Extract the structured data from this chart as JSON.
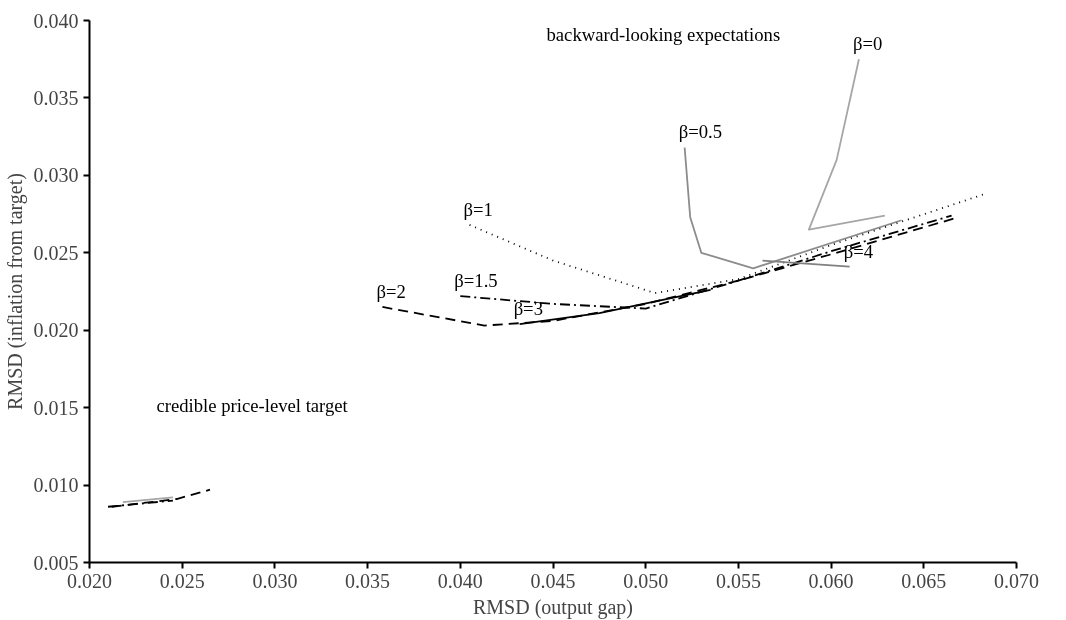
{
  "chart_data": {
    "type": "line",
    "xlabel": "RMSD (output gap)",
    "ylabel": "RMSD (inflation from target)",
    "xlim": [
      0.02,
      0.07
    ],
    "ylim": [
      0.005,
      0.04
    ],
    "xticks": [
      {
        "value": 0.02,
        "label": "0.020"
      },
      {
        "value": 0.025,
        "label": "0.025"
      },
      {
        "value": 0.03,
        "label": "0.030"
      },
      {
        "value": 0.035,
        "label": "0.035"
      },
      {
        "value": 0.04,
        "label": "0.040"
      },
      {
        "value": 0.045,
        "label": "0.045"
      },
      {
        "value": 0.05,
        "label": "0.050"
      },
      {
        "value": 0.055,
        "label": "0.055"
      },
      {
        "value": 0.06,
        "label": "0.060"
      },
      {
        "value": 0.065,
        "label": "0.065"
      },
      {
        "value": 0.07,
        "label": "0.070"
      }
    ],
    "yticks": [
      {
        "value": 0.005,
        "label": "0.005"
      },
      {
        "value": 0.01,
        "label": "0.010"
      },
      {
        "value": 0.015,
        "label": "0.015"
      },
      {
        "value": 0.02,
        "label": "0.020"
      },
      {
        "value": 0.025,
        "label": "0.025"
      },
      {
        "value": 0.03,
        "label": "0.030"
      },
      {
        "value": 0.035,
        "label": "0.035"
      },
      {
        "value": 0.04,
        "label": "0.040"
      }
    ],
    "grid": false,
    "marker": "none",
    "series": [
      {
        "color": "#a6a6a6",
        "line_style": "solid",
        "x": [
          0.0615,
          0.0603,
          0.0588,
          0.0629
        ],
        "values": [
          0.0375,
          0.031,
          0.0265,
          0.0274
        ]
      },
      {
        "color": "#8c8c8c",
        "line_style": "solid",
        "x": [
          0.0521,
          0.0524,
          0.053,
          0.0558,
          0.0638
        ],
        "values": [
          0.0318,
          0.0273,
          0.025,
          0.024,
          0.0271
        ]
      },
      {
        "color": "#000000",
        "line_style": "dotted",
        "x": [
          0.0405,
          0.045,
          0.0505,
          0.055,
          0.06,
          0.0683
        ],
        "values": [
          0.0268,
          0.0245,
          0.0224,
          0.0233,
          0.0255,
          0.0288
        ]
      },
      {
        "color": "#000000",
        "line_style": "dashdot",
        "x": [
          0.04,
          0.045,
          0.05,
          0.055,
          0.06,
          0.0665
        ],
        "values": [
          0.0222,
          0.0217,
          0.0214,
          0.0232,
          0.0251,
          0.0274
        ]
      },
      {
        "color": "#000000",
        "line_style": "dashed",
        "x": [
          0.0358,
          0.0413,
          0.045,
          0.05,
          0.055,
          0.06,
          0.0666
        ],
        "values": [
          0.0215,
          0.0203,
          0.0206,
          0.0217,
          0.0232,
          0.0249,
          0.0272
        ]
      },
      {
        "color": "#000000",
        "line_style": "solid",
        "x": [
          0.0432,
          0.0475,
          0.0535
        ],
        "values": [
          0.0204,
          0.0211,
          0.0226
        ]
      },
      {
        "color": "#808080",
        "line_style": "solid",
        "x": [
          0.0563,
          0.061
        ],
        "values": [
          0.0245,
          0.0241
        ]
      },
      {
        "color": "#000000",
        "line_style": "dashed",
        "x": [
          0.0212,
          0.0247,
          0.0265
        ],
        "values": [
          0.0086,
          0.0091,
          0.0097
        ]
      },
      {
        "color": "#a6a6a6",
        "line_style": "solid",
        "x": [
          0.0218,
          0.0245
        ],
        "values": [
          0.0089,
          0.0092
        ]
      },
      {
        "color": "#000000",
        "line_style": "dashdot",
        "x": [
          0.021,
          0.0245
        ],
        "values": [
          0.0086,
          0.009
        ]
      }
    ],
    "annotations": [
      {
        "text": "β=0",
        "x": 0.0615,
        "y": 0.0375
      },
      {
        "text": "β=0.5",
        "x": 0.0521,
        "y": 0.0318
      },
      {
        "text": "β=1",
        "x": 0.0405,
        "y": 0.0268
      },
      {
        "text": "β=1.5",
        "x": 0.04,
        "y": 0.0222
      },
      {
        "text": "β=2",
        "x": 0.0358,
        "y": 0.0215
      },
      {
        "text": "β=3",
        "x": 0.0432,
        "y": 0.0204
      },
      {
        "text": "β=4",
        "x": 0.061,
        "y": 0.0241
      },
      "backward-looking expectations",
      "credible price-level target"
    ]
  }
}
